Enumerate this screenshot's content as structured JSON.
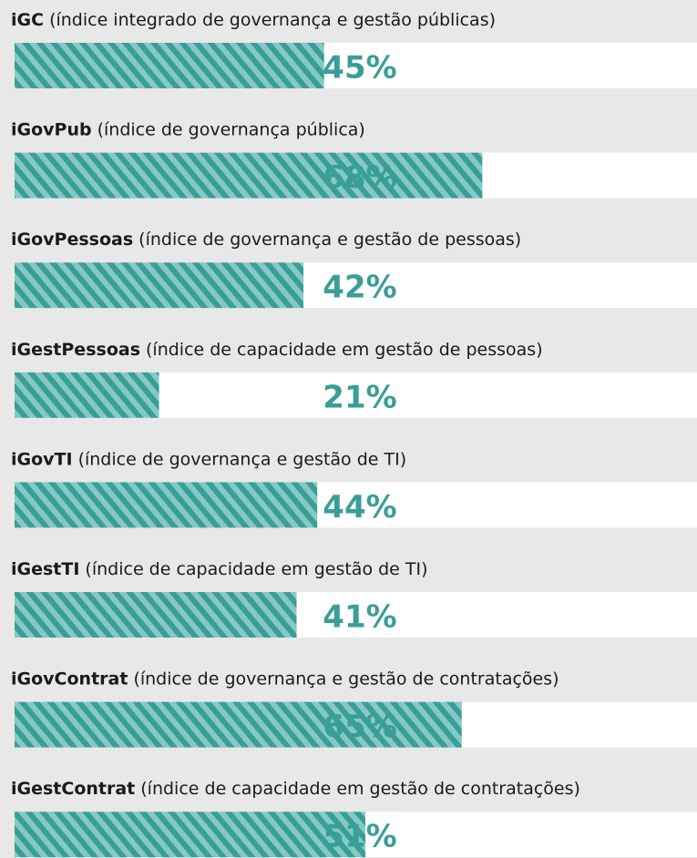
{
  "chart_data": {
    "type": "bar",
    "orientation": "horizontal",
    "categories": [
      "iGC",
      "iGovPub",
      "iGovPessoas",
      "iGestPessoas",
      "iGovTI",
      "iGestTI",
      "iGovContrat",
      "iGestContrat"
    ],
    "descriptions": [
      "(índice integrado de governança e gestão públicas)",
      "(índice de governança pública)",
      "(índice de governança e gestão de pessoas)",
      "(índice de capacidade em gestão de pessoas)",
      "(índice de governança e gestão de TI)",
      "(índice de capacidade em gestão de TI)",
      "(índice de governança e gestão de contratações)",
      "(índice de capacidade em gestão de contratações)"
    ],
    "values": [
      45,
      68,
      42,
      21,
      44,
      41,
      65,
      51
    ],
    "value_labels": [
      "45%",
      "68%",
      "42%",
      "21%",
      "44%",
      "41%",
      "65%",
      "51%"
    ],
    "color": "#3a9e98",
    "stripe_color": "#86c9c3",
    "xlim": [
      0,
      100
    ]
  }
}
